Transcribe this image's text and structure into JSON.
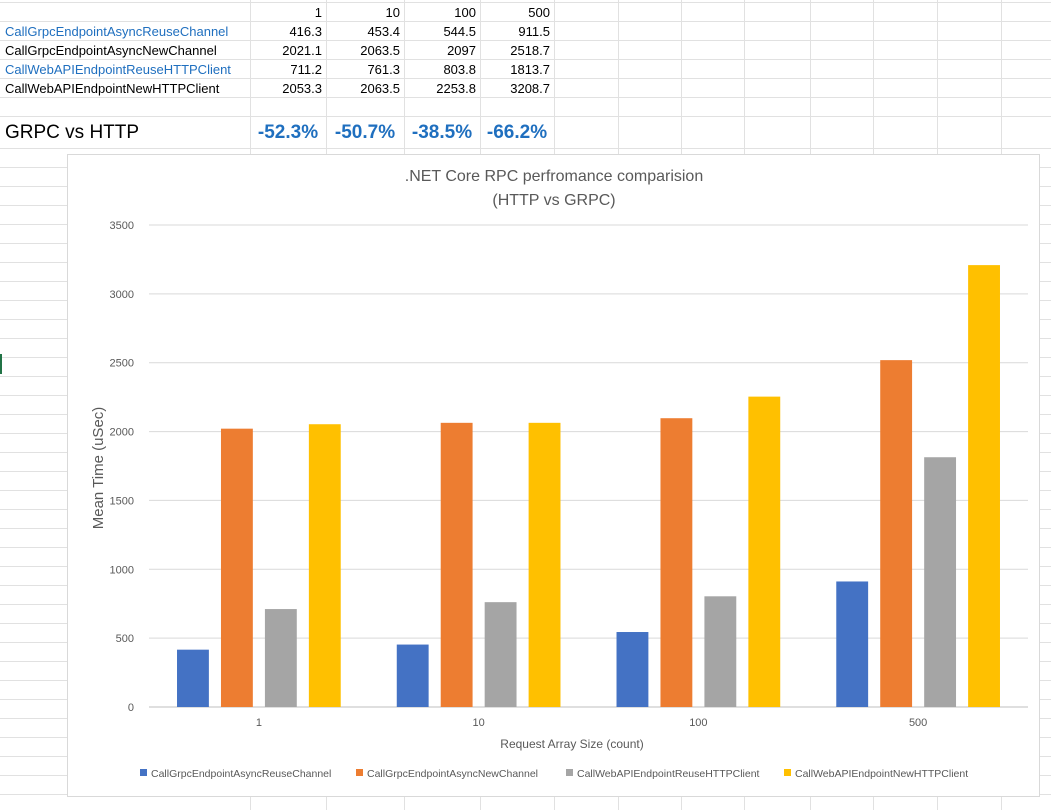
{
  "sheet": {
    "headers": [
      "1",
      "10",
      "100",
      "500"
    ],
    "rows": [
      {
        "label": "CallGrpcEndpointAsyncReuseChannel",
        "values": [
          "416.3",
          "453.4",
          "544.5",
          "911.5"
        ]
      },
      {
        "label": "CallGrpcEndpointAsyncNewChannel",
        "values": [
          "2021.1",
          "2063.5",
          "2097",
          "2518.7"
        ]
      },
      {
        "label": "CallWebAPIEndpointReuseHTTPClient",
        "values": [
          "711.2",
          "761.3",
          "803.8",
          "1813.7"
        ]
      },
      {
        "label": "CallWebAPIEndpointNewHTTPClient",
        "values": [
          "2053.3",
          "2063.5",
          "2253.8",
          "3208.7"
        ]
      }
    ],
    "comparison_label": "GRPC vs HTTP",
    "comparison_values": [
      "-52.3%",
      "-50.7%",
      "-38.5%",
      "-66.2%"
    ],
    "link_color": "#1f6fbf"
  },
  "chart_data": {
    "type": "bar",
    "title": ".NET Core RPC perfromance comparision",
    "subtitle": "(HTTP vs GRPC)",
    "xlabel": "Request Array Size (count)",
    "ylabel": "Mean Time (uSec)",
    "categories": [
      "1",
      "10",
      "100",
      "500"
    ],
    "ylim": [
      0,
      3500
    ],
    "yticks": [
      0,
      500,
      1000,
      1500,
      2000,
      2500,
      3000,
      3500
    ],
    "grid": true,
    "legend_position": "bottom",
    "series": [
      {
        "name": "CallGrpcEndpointAsyncReuseChannel",
        "color": "#4472c4",
        "values": [
          416.3,
          453.4,
          544.5,
          911.5
        ]
      },
      {
        "name": "CallGrpcEndpointAsyncNewChannel",
        "color": "#ed7d31",
        "values": [
          2021.1,
          2063.5,
          2097,
          2518.7
        ]
      },
      {
        "name": "CallWebAPIEndpointReuseHTTPClient",
        "color": "#a5a5a5",
        "values": [
          711.2,
          761.3,
          803.8,
          1813.7
        ]
      },
      {
        "name": "CallWebAPIEndpointNewHTTPClient",
        "color": "#ffc000",
        "values": [
          2053.3,
          2063.5,
          2253.8,
          3208.7
        ]
      }
    ]
  }
}
